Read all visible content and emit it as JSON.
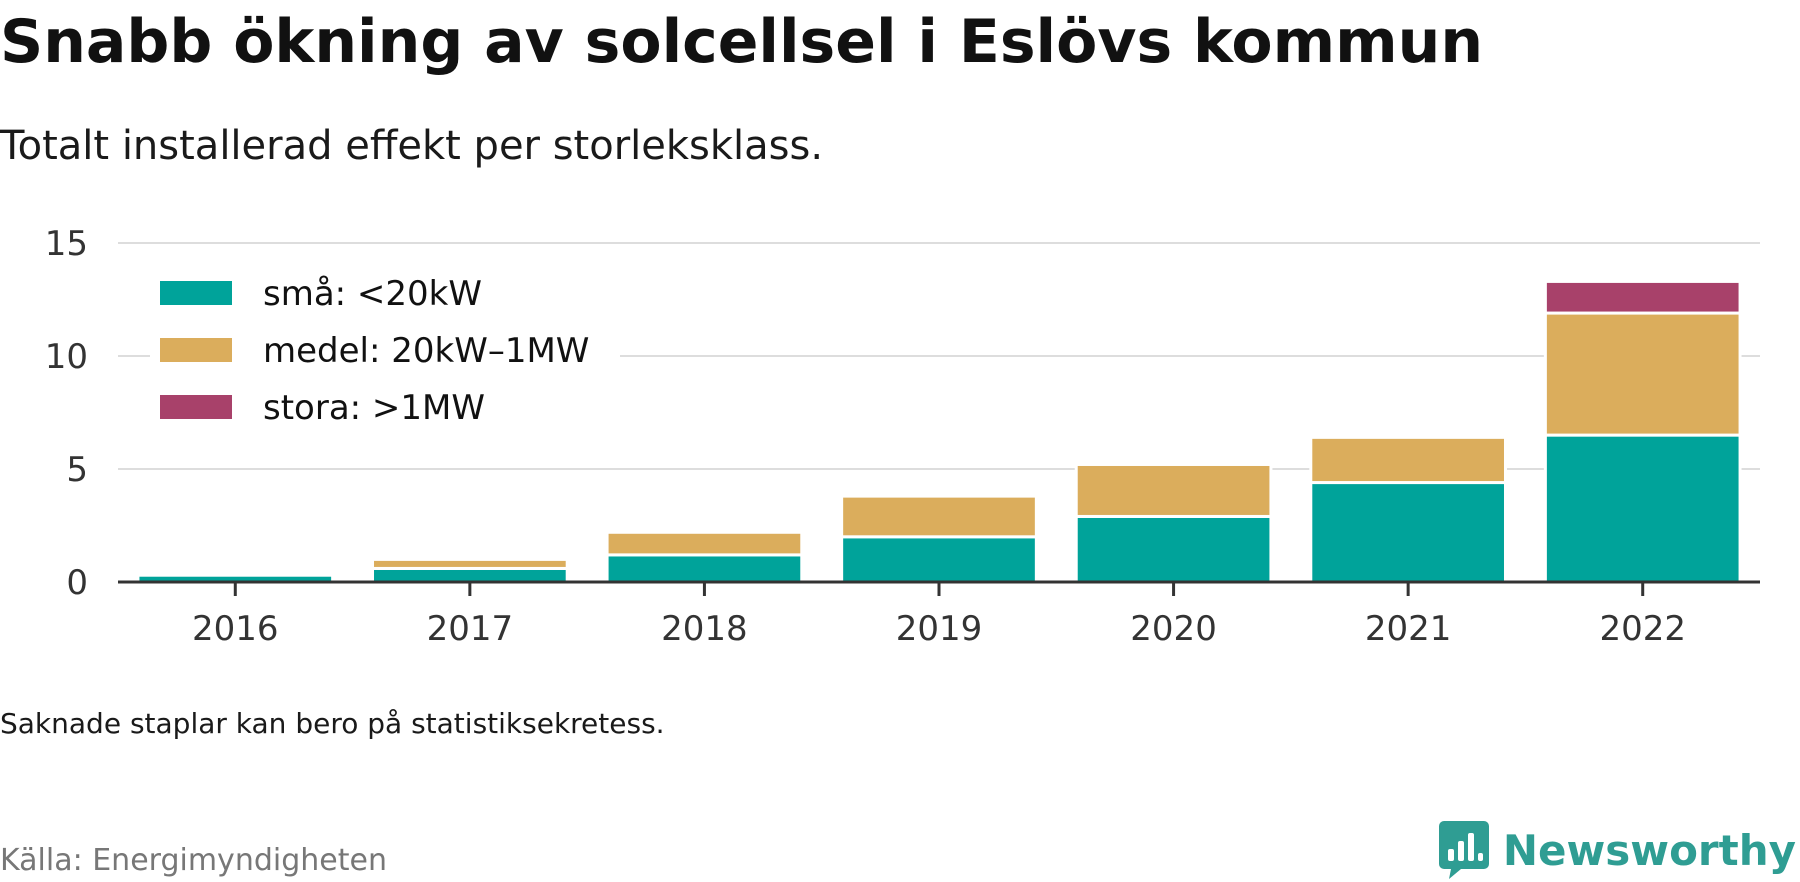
{
  "header": {
    "title": "Snabb ökning av solcellsel i Eslövs kommun",
    "subtitle": "Totalt installerad effekt per storleksklass."
  },
  "footer": {
    "note": "Saknade staplar kan bero på statistiksekretess.",
    "source": "Källa: Energimyndigheten",
    "brand": "Newsworthy",
    "brand_icon": "newsworthy-logo-icon",
    "brand_color": "#2f9d93"
  },
  "chart_data": {
    "type": "bar",
    "stacked": true,
    "categories": [
      "2016",
      "2017",
      "2018",
      "2019",
      "2020",
      "2021",
      "2022"
    ],
    "series": [
      {
        "name": "små: <20kW",
        "color": "#00a39a",
        "values": [
          0.3,
          0.6,
          1.2,
          2.0,
          2.9,
          4.4,
          6.5
        ]
      },
      {
        "name": "medel: 20kW–1MW",
        "color": "#dbad5c",
        "values": [
          0,
          0.4,
          1.0,
          1.8,
          2.3,
          2.0,
          5.4
        ]
      },
      {
        "name": "stora: >1MW",
        "color": "#a8416a",
        "values": [
          0,
          0,
          0,
          0,
          0,
          0,
          1.4
        ]
      }
    ],
    "ylim": [
      0,
      15
    ],
    "yticks": [
      0,
      5,
      10,
      15
    ],
    "grid": true,
    "legend": "top-left"
  }
}
